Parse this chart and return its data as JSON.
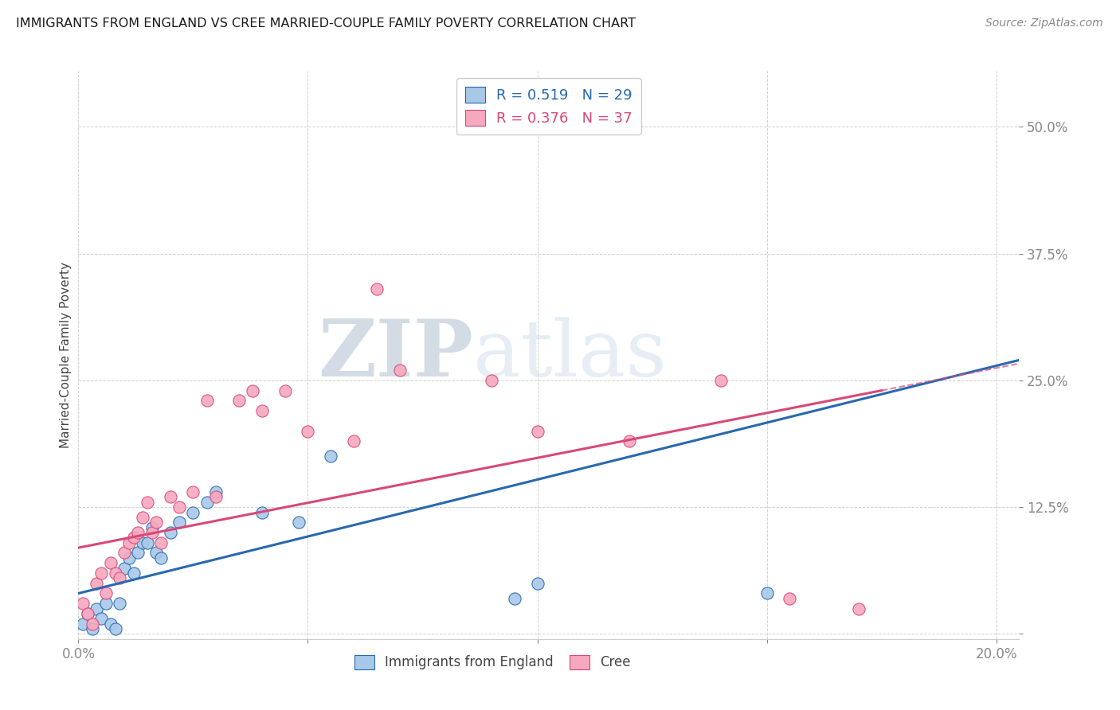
{
  "title": "IMMIGRANTS FROM ENGLAND VS CREE MARRIED-COUPLE FAMILY POVERTY CORRELATION CHART",
  "source": "Source: ZipAtlas.com",
  "ylabel": "Married-Couple Family Poverty",
  "xlim": [
    0.0,
    0.205
  ],
  "ylim": [
    -0.005,
    0.555
  ],
  "xticks": [
    0.0,
    0.05,
    0.1,
    0.15,
    0.2
  ],
  "yticks": [
    0.0,
    0.125,
    0.25,
    0.375,
    0.5
  ],
  "legend1_r": "0.519",
  "legend1_n": "29",
  "legend2_r": "0.376",
  "legend2_n": "37",
  "color_england": "#a8c8e8",
  "color_cree": "#f5a8be",
  "line_color_england": "#2868b0",
  "line_color_cree": "#d84878",
  "watermark_zip": "ZIP",
  "watermark_atlas": "atlas",
  "england_x": [
    0.001,
    0.002,
    0.003,
    0.004,
    0.005,
    0.006,
    0.007,
    0.008,
    0.009,
    0.01,
    0.011,
    0.012,
    0.013,
    0.014,
    0.015,
    0.016,
    0.017,
    0.018,
    0.02,
    0.022,
    0.025,
    0.028,
    0.03,
    0.04,
    0.048,
    0.055,
    0.095,
    0.1,
    0.15
  ],
  "england_y": [
    0.01,
    0.02,
    0.005,
    0.025,
    0.015,
    0.03,
    0.01,
    0.005,
    0.03,
    0.065,
    0.075,
    0.06,
    0.08,
    0.09,
    0.09,
    0.105,
    0.08,
    0.075,
    0.1,
    0.11,
    0.12,
    0.13,
    0.14,
    0.12,
    0.11,
    0.175,
    0.035,
    0.05,
    0.04
  ],
  "cree_x": [
    0.001,
    0.002,
    0.003,
    0.004,
    0.005,
    0.006,
    0.007,
    0.008,
    0.009,
    0.01,
    0.011,
    0.012,
    0.013,
    0.014,
    0.015,
    0.016,
    0.017,
    0.018,
    0.02,
    0.022,
    0.025,
    0.028,
    0.03,
    0.035,
    0.038,
    0.04,
    0.045,
    0.05,
    0.06,
    0.065,
    0.07,
    0.09,
    0.1,
    0.12,
    0.14,
    0.155,
    0.17
  ],
  "cree_y": [
    0.03,
    0.02,
    0.01,
    0.05,
    0.06,
    0.04,
    0.07,
    0.06,
    0.055,
    0.08,
    0.09,
    0.095,
    0.1,
    0.115,
    0.13,
    0.1,
    0.11,
    0.09,
    0.135,
    0.125,
    0.14,
    0.23,
    0.135,
    0.23,
    0.24,
    0.22,
    0.24,
    0.2,
    0.19,
    0.34,
    0.26,
    0.25,
    0.2,
    0.19,
    0.25,
    0.035,
    0.025
  ],
  "england_line_x0": 0.0,
  "england_line_x1": 0.205,
  "england_line_y0": 0.04,
  "england_line_y1": 0.27,
  "cree_line_x0": 0.0,
  "cree_line_x1": 0.175,
  "cree_line_y0": 0.085,
  "cree_line_y1": 0.24
}
